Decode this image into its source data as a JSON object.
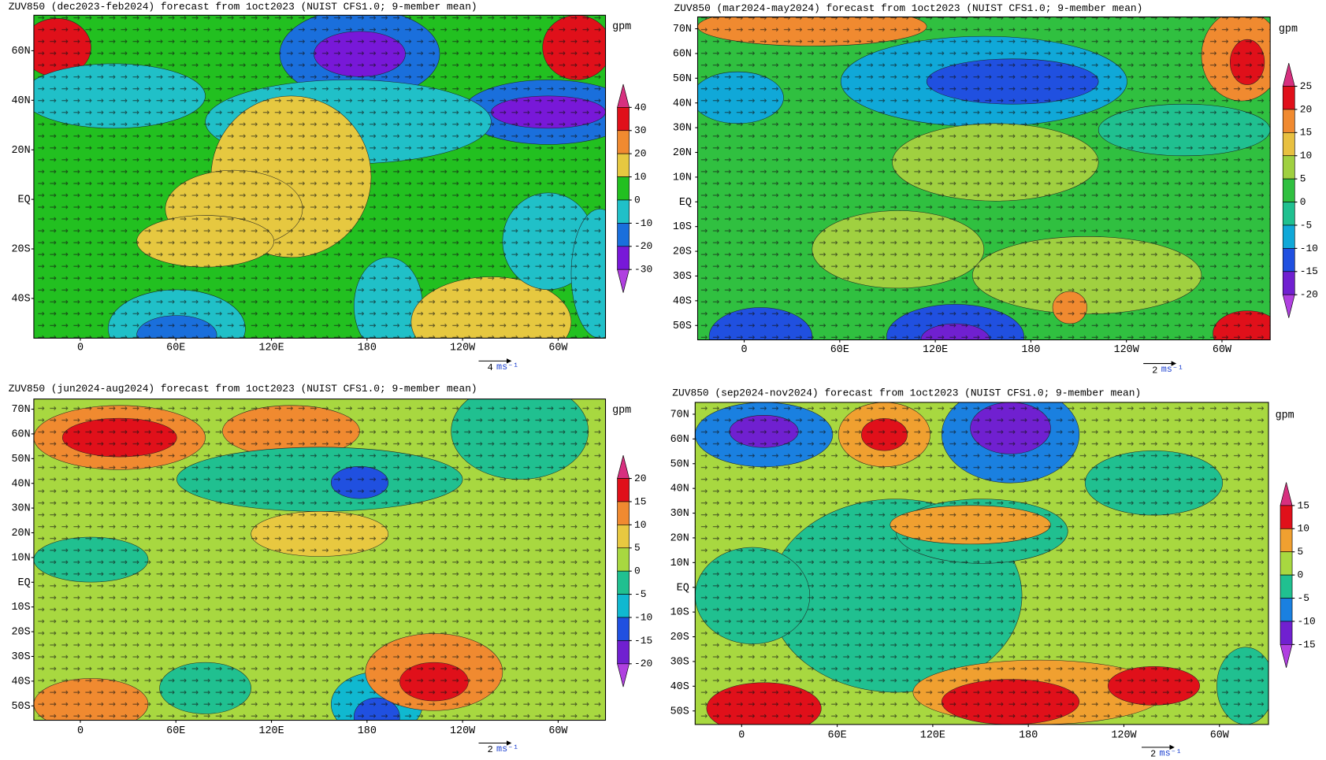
{
  "panels": [
    {
      "title": "ZUV850 (dec2023-feb2024) forecast from 1oct2023 (NUIST CFS1.0; 9-member mean)",
      "lat_labels": [
        "60N",
        "40N",
        "20N",
        "EQ",
        "20S",
        "40S"
      ],
      "lon_labels": [
        "0",
        "60E",
        "120E",
        "180",
        "120W",
        "60W"
      ],
      "unit": "gpm",
      "colorbar": {
        "levels": [
          40,
          30,
          20,
          10,
          0,
          -10,
          -20,
          -30
        ],
        "colors": [
          "#d7307f",
          "#e0101a",
          "#f08a30",
          "#e6c840",
          "#22c020",
          "#20c0c8",
          "#1a6fdc",
          "#7818d8",
          "#b040e0"
        ]
      },
      "ref_value": 4,
      "ref_unit": "ms⁻¹"
    },
    {
      "title": "ZUV850 (mar2024-may2024) forecast from 1oct2023 (NUIST CFS1.0; 9-member mean)",
      "lat_labels": [
        "70N",
        "60N",
        "50N",
        "40N",
        "30N",
        "20N",
        "10N",
        "EQ",
        "10S",
        "20S",
        "30S",
        "40S",
        "50S"
      ],
      "lon_labels": [
        "0",
        "60E",
        "120E",
        "180",
        "120W",
        "60W"
      ],
      "unit": "gpm",
      "colorbar": {
        "levels": [
          25,
          20,
          15,
          10,
          5,
          0,
          -5,
          -10,
          -15,
          -20
        ],
        "colors": [
          "#d7307f",
          "#e0101a",
          "#f08a30",
          "#e8c040",
          "#a0d040",
          "#30c040",
          "#20c090",
          "#10a8d8",
          "#2050e0",
          "#7020d0",
          "#b040e0"
        ]
      },
      "ref_value": 2,
      "ref_unit": "ms⁻¹"
    },
    {
      "title": "ZUV850 (jun2024-aug2024) forecast from 1oct2023 (NUIST CFS1.0; 9-member mean)",
      "lat_labels": [
        "70N",
        "60N",
        "50N",
        "40N",
        "30N",
        "20N",
        "10N",
        "EQ",
        "10S",
        "20S",
        "30S",
        "40S",
        "50S"
      ],
      "lon_labels": [
        "0",
        "60E",
        "120E",
        "180",
        "120W",
        "60W"
      ],
      "unit": "gpm",
      "colorbar": {
        "levels": [
          20,
          15,
          10,
          5,
          0,
          -5,
          -10,
          -15,
          -20
        ],
        "colors": [
          "#d7307f",
          "#e0101a",
          "#f08a30",
          "#e8c840",
          "#a8d840",
          "#20c090",
          "#10b8d0",
          "#2050e0",
          "#7020d0",
          "#b040e0"
        ]
      },
      "ref_value": 2,
      "ref_unit": "ms⁻¹"
    },
    {
      "title": "ZUV850 (sep2024-nov2024) forecast from 1oct2023 (NUIST CFS1.0; 9-member mean)",
      "lat_labels": [
        "70N",
        "60N",
        "50N",
        "40N",
        "30N",
        "20N",
        "10N",
        "EQ",
        "10S",
        "20S",
        "30S",
        "40S",
        "50S"
      ],
      "lon_labels": [
        "0",
        "60E",
        "120E",
        "180",
        "120W",
        "60W"
      ],
      "unit": "gpm",
      "colorbar": {
        "levels": [
          15,
          10,
          5,
          0,
          -5,
          -10,
          -15
        ],
        "colors": [
          "#d7307f",
          "#e0101a",
          "#f0a030",
          "#a8d840",
          "#20c090",
          "#1a80e0",
          "#7020d0",
          "#b040e0"
        ]
      },
      "ref_value": 2,
      "ref_unit": "ms⁻¹"
    }
  ]
}
